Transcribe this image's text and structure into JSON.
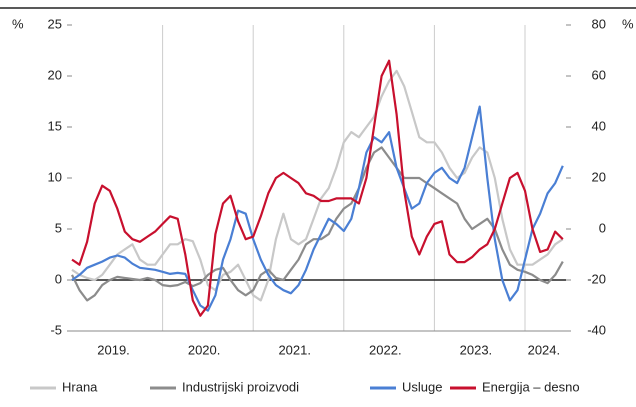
{
  "chart_data": {
    "type": "line",
    "unit_label": "%",
    "years": [
      "2019.",
      "2020.",
      "2021.",
      "2022.",
      "2023.",
      "2024."
    ],
    "ylim": [
      -5,
      25
    ],
    "yticks": [
      25,
      20,
      15,
      10,
      5,
      0,
      -5
    ],
    "y2lim": [
      -40,
      80
    ],
    "y2ticks": [
      80,
      60,
      40,
      20,
      0,
      -20,
      -40
    ],
    "series": [
      {
        "name": "Hrana",
        "color": "#c8c8c8",
        "values": [
          1,
          0.5,
          0.2,
          0,
          0.5,
          1.5,
          2.5,
          3,
          3.5,
          2,
          1.5,
          1.5,
          2.5,
          3.5,
          3.5,
          4,
          3.8,
          2,
          -0.5,
          -1,
          0.5,
          0.8,
          1.5,
          0,
          -1.5,
          -2,
          0,
          4,
          6.5,
          4,
          3.5,
          4,
          6,
          8,
          9,
          11,
          13.5,
          14.5,
          14,
          15,
          16,
          18,
          19.5,
          20.5,
          19,
          16.5,
          14,
          13.5,
          13.5,
          12.5,
          11,
          10,
          10.5,
          12,
          13,
          12.5,
          10,
          6,
          3,
          1.5,
          1.5,
          1.5,
          2,
          2.5,
          3.5,
          4
        ]
      },
      {
        "name": "Industrijski proizvodi",
        "color": "#8c8c8c",
        "values": [
          0.5,
          -1,
          -2,
          -1.5,
          -0.5,
          0,
          0.3,
          0.2,
          0.1,
          0,
          0.2,
          0,
          -0.5,
          -0.6,
          -0.5,
          -0.2,
          -0.6,
          -0.3,
          0.5,
          1,
          1.2,
          0,
          -1,
          -1.5,
          -1,
          0.5,
          1,
          0.2,
          0,
          1,
          2,
          3.5,
          4,
          4,
          4.5,
          6,
          7,
          7.5,
          9,
          11,
          12.5,
          13,
          12,
          11,
          10,
          10,
          10,
          9.5,
          9,
          8.5,
          8,
          7.5,
          6,
          5,
          5.5,
          6,
          5,
          3,
          1.5,
          1,
          0.8,
          0.5,
          0,
          -0.3,
          0.5,
          1.8
        ]
      },
      {
        "name": "Usluge",
        "color": "#4a7fd4",
        "values": [
          0,
          0.5,
          1.2,
          1.5,
          1.8,
          2.2,
          2.4,
          2.2,
          1.6,
          1.2,
          1.1,
          1,
          0.8,
          0.6,
          0.7,
          0.6,
          -1,
          -2.5,
          -3,
          -1.5,
          2,
          4,
          6.8,
          6.5,
          4,
          2,
          0.5,
          -0.5,
          -1,
          -1.3,
          -0.5,
          1,
          3,
          4.5,
          6,
          5.5,
          4.8,
          6,
          9,
          12.5,
          14,
          13.5,
          14.5,
          11,
          9,
          7,
          7.5,
          9.5,
          10.5,
          11,
          10,
          9.5,
          11,
          14,
          17,
          10,
          4,
          0,
          -2,
          -1,
          2,
          5,
          6.5,
          8.5,
          9.5,
          11.2
        ]
      },
      {
        "name": "Energija – desno",
        "color": "#c8102e",
        "axis": "y2",
        "values": [
          -12,
          -14,
          -5,
          10,
          17,
          15,
          8,
          -1,
          -4,
          -5,
          -3,
          -1,
          2,
          5,
          4,
          -10,
          -28,
          -34,
          -30,
          -2,
          10,
          13,
          3,
          -4,
          -3,
          5,
          14,
          20,
          22,
          20,
          18,
          14,
          13,
          11,
          11,
          12,
          12,
          12,
          10,
          20,
          40,
          60,
          66,
          45,
          15,
          -3,
          -10,
          -3,
          2,
          3,
          -10,
          -13,
          -13,
          -11,
          -8,
          -6,
          0,
          10,
          20,
          22,
          15,
          0,
          -9,
          -8,
          -1,
          -4
        ]
      }
    ]
  }
}
